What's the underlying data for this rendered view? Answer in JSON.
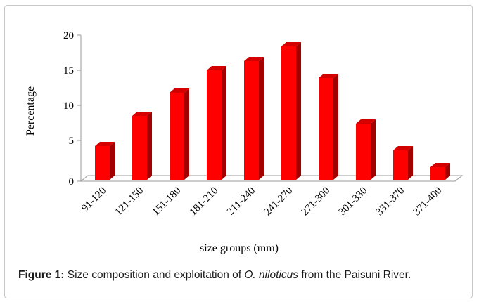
{
  "chart_data": {
    "type": "bar",
    "title": "",
    "xlabel": "size groups (mm)",
    "ylabel": "Percentage",
    "categories": [
      "91-120",
      "121-150",
      "151-180",
      "181-210",
      "211-240",
      "241-270",
      "271-300",
      "301-330",
      "331-370",
      "371-400"
    ],
    "values": [
      4.2,
      8.5,
      11.8,
      15.0,
      16.3,
      18.4,
      13.9,
      7.4,
      3.6,
      1.2
    ],
    "ylim": [
      0,
      20
    ],
    "yticks": [
      "0",
      "5",
      "10",
      "15",
      "20"
    ],
    "grid": false,
    "legend": "none",
    "bar_color": "#ff0000",
    "bar_side_color": "#a30000",
    "bar_top_color": "#d40000"
  },
  "caption": {
    "label": "Figure 1:",
    "text_before": " Size composition and exploitation of ",
    "species": "O. niloticus",
    "text_after": " from the Paisuni River."
  }
}
